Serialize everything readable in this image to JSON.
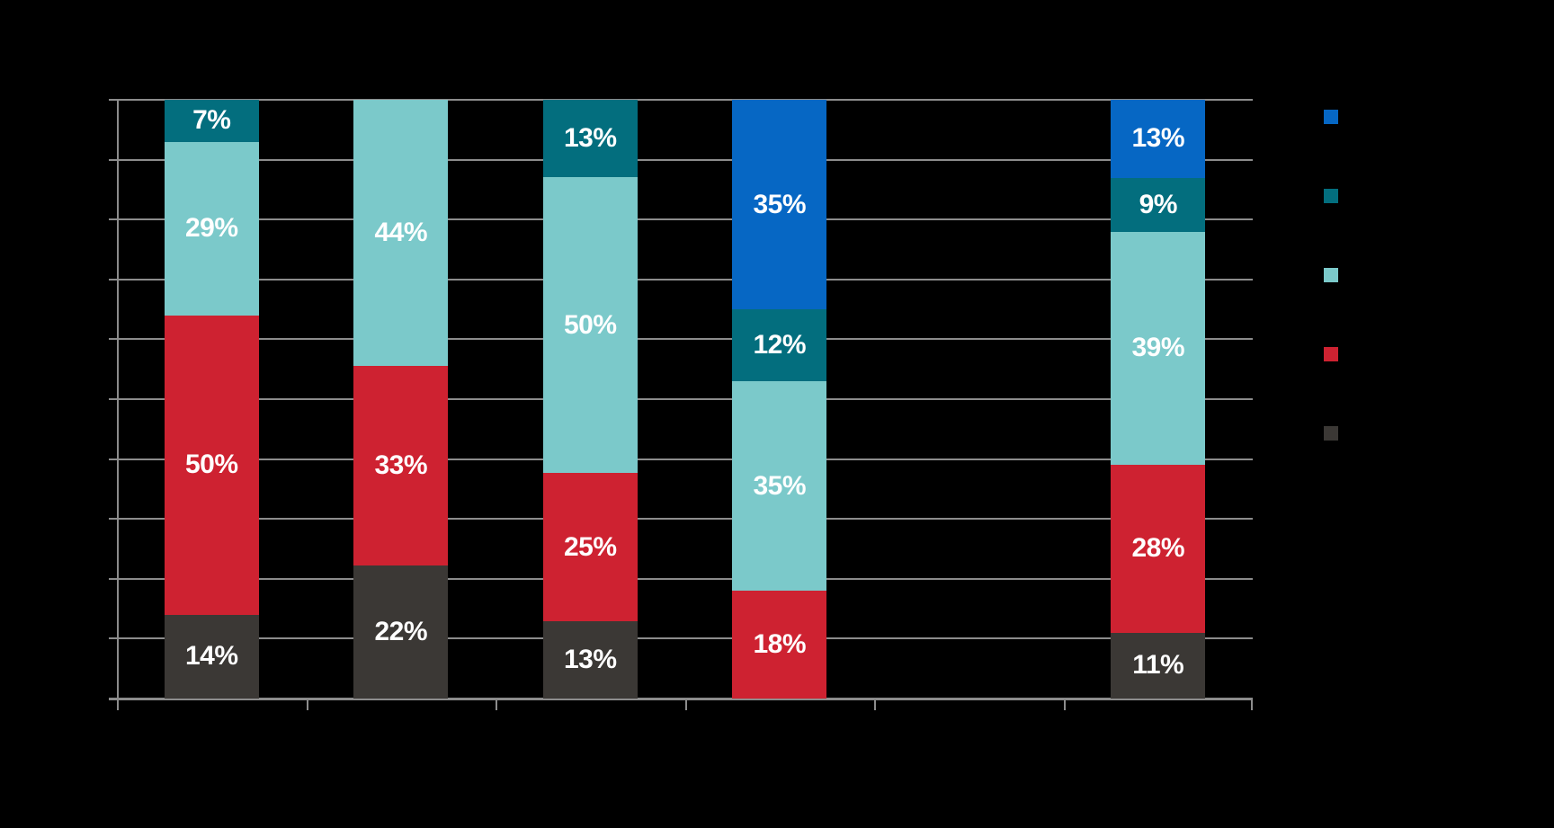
{
  "page": {
    "background_color": "#000000",
    "title_text_visible": false,
    "axis_tick_labels_visible": false,
    "legend_text_visible": false
  },
  "styles": {
    "grid_color": "#8C8C8C",
    "data_label_color": "#FFFFFF"
  },
  "chart_data": {
    "type": "bar",
    "variant": "stacked-vertical-percent",
    "title": "",
    "xlabel": "",
    "ylabel": "",
    "ylim": [
      0,
      100
    ],
    "gridline_interval_percent": 10,
    "grid_on": true,
    "legend_position": "right",
    "num_category_slots": 6,
    "empty_slots": [
      4
    ],
    "categories": [
      "",
      "",
      "",
      "",
      "",
      ""
    ],
    "stack_order_note": "series listed top-of-stack first",
    "series": [
      {
        "name": "series-blue",
        "color": "#0667C4",
        "values": [
          null,
          null,
          null,
          35,
          null,
          13
        ]
      },
      {
        "name": "series-dark-teal",
        "color": "#036E7E",
        "values": [
          7,
          null,
          13,
          12,
          null,
          9
        ]
      },
      {
        "name": "series-light-teal",
        "color": "#7BC9CA",
        "values": [
          29,
          44,
          50,
          35,
          null,
          39
        ]
      },
      {
        "name": "series-red",
        "color": "#CE2231",
        "values": [
          50,
          33,
          25,
          18,
          null,
          28
        ]
      },
      {
        "name": "series-dark-gray",
        "color": "#3B3835",
        "values": [
          14,
          22,
          13,
          null,
          null,
          11
        ]
      }
    ],
    "data_labels": {
      "format": "{value}%",
      "position": "inside-center",
      "visible_labels": [
        [
          "7%",
          "29%",
          "50%",
          "14%"
        ],
        [
          "44%",
          "33%",
          "22%"
        ],
        [
          "13%",
          "50%",
          "25%",
          "13%"
        ],
        [
          "35%",
          "12%",
          "35%",
          "18%"
        ],
        [],
        [
          "13%",
          "9%",
          "39%",
          "28%",
          "11%"
        ]
      ]
    }
  },
  "legend": {
    "swatches": [
      {
        "name": "legend-swatch-blue",
        "color": "#0667C4",
        "label": ""
      },
      {
        "name": "legend-swatch-dark-teal",
        "color": "#036E7E",
        "label": ""
      },
      {
        "name": "legend-swatch-light-teal",
        "color": "#7BC9CA",
        "label": ""
      },
      {
        "name": "legend-swatch-red",
        "color": "#CE2231",
        "label": ""
      },
      {
        "name": "legend-swatch-dark-gray",
        "color": "#3B3835",
        "label": ""
      }
    ]
  }
}
